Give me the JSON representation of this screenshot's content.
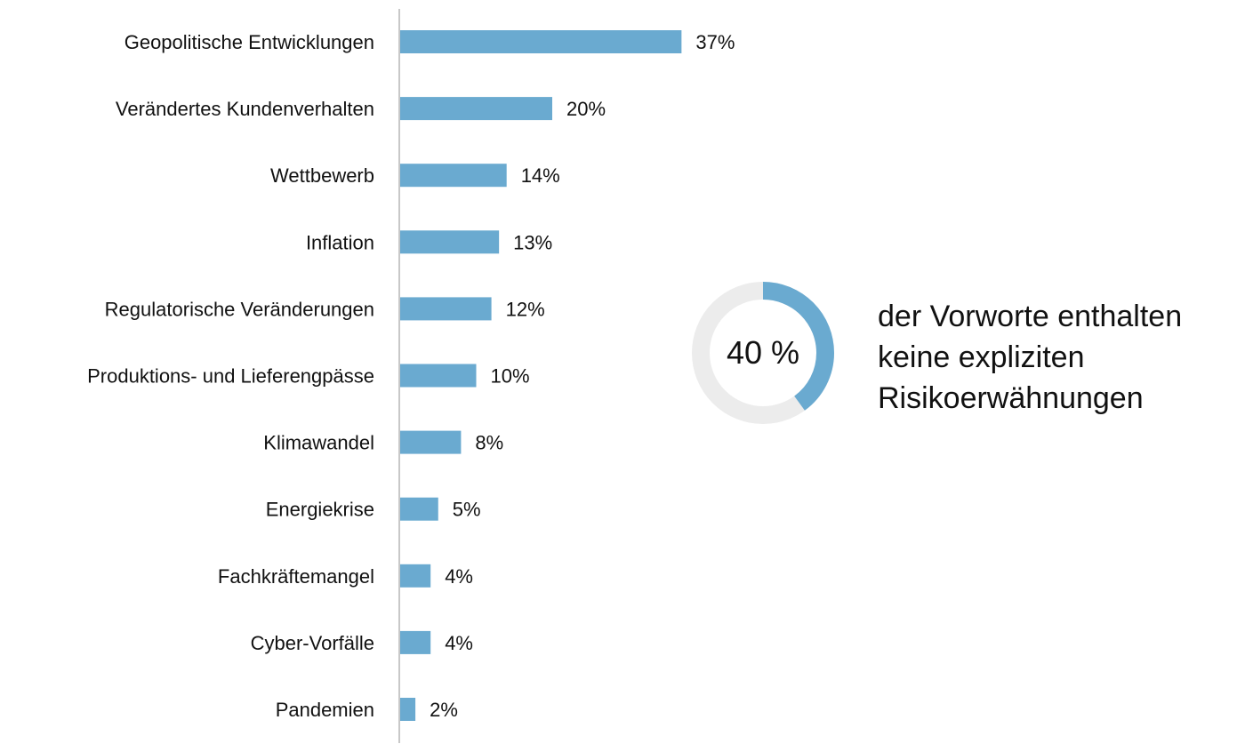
{
  "chart_data": {
    "type": "bar",
    "orientation": "horizontal",
    "categories": [
      "Geopolitische Entwicklungen",
      "Verändertes Kundenverhalten",
      "Wettbewerb",
      "Inflation",
      "Regulatorische Veränderungen",
      "Produktions- und Lieferengpässe",
      "Klimawandel",
      "Energiekrise",
      "Fachkräftemangel",
      "Cyber-Vorfälle",
      "Pandemien"
    ],
    "values": [
      37,
      20,
      14,
      13,
      12,
      10,
      8,
      5,
      4,
      4,
      2
    ],
    "value_labels": [
      "37%",
      "20%",
      "14%",
      "13%",
      "12%",
      "10%",
      "8%",
      "5%",
      "4%",
      "4%",
      "2%"
    ],
    "bar_color": "#6aaad0",
    "xlim": [
      0,
      100
    ],
    "grid": false
  },
  "donut": {
    "value": 40,
    "label": "40 %",
    "fill_color": "#6aaad0",
    "track_color": "#ececec",
    "text_lines": [
      "der Vorworte enthalten",
      "keine expliziten",
      "Risikoerwähnungen"
    ]
  }
}
